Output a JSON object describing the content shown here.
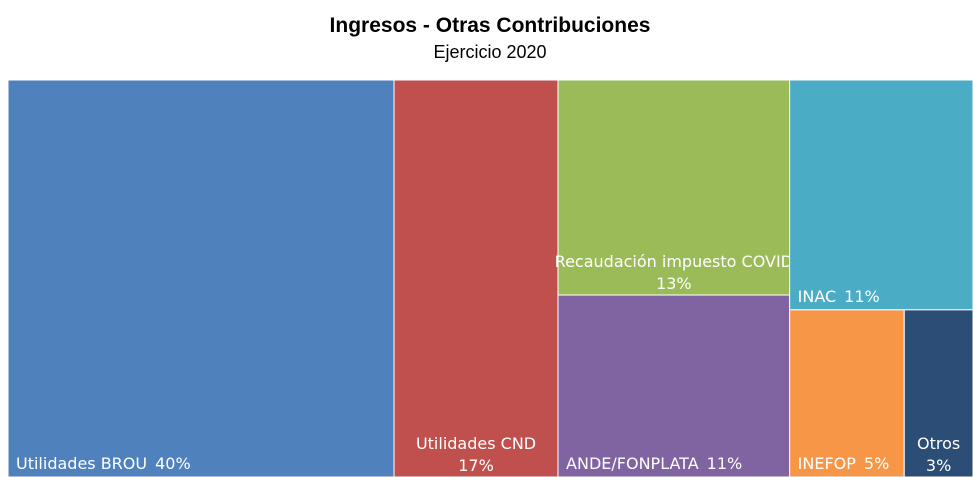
{
  "chart_data": {
    "type": "treemap",
    "title": "Ingresos - Otras Contribuciones",
    "subtitle": "Ejercicio 2020",
    "categories": [
      "Utilidades BROU",
      "Utilidades CND",
      "Recaudación impuesto COVID",
      "ANDE/FONPLATA",
      "INAC",
      "INEFOP",
      "Otros"
    ],
    "values": [
      40,
      17,
      13,
      11,
      11,
      5,
      3
    ],
    "value_labels": [
      "40%",
      "17%",
      "13%",
      "11%",
      "11%",
      "5%",
      "3%"
    ],
    "colors": [
      "#4f81bd",
      "#c0504d",
      "#9bbb59",
      "#8064a2",
      "#4bacc6",
      "#f79646",
      "#2c4d75"
    ]
  }
}
